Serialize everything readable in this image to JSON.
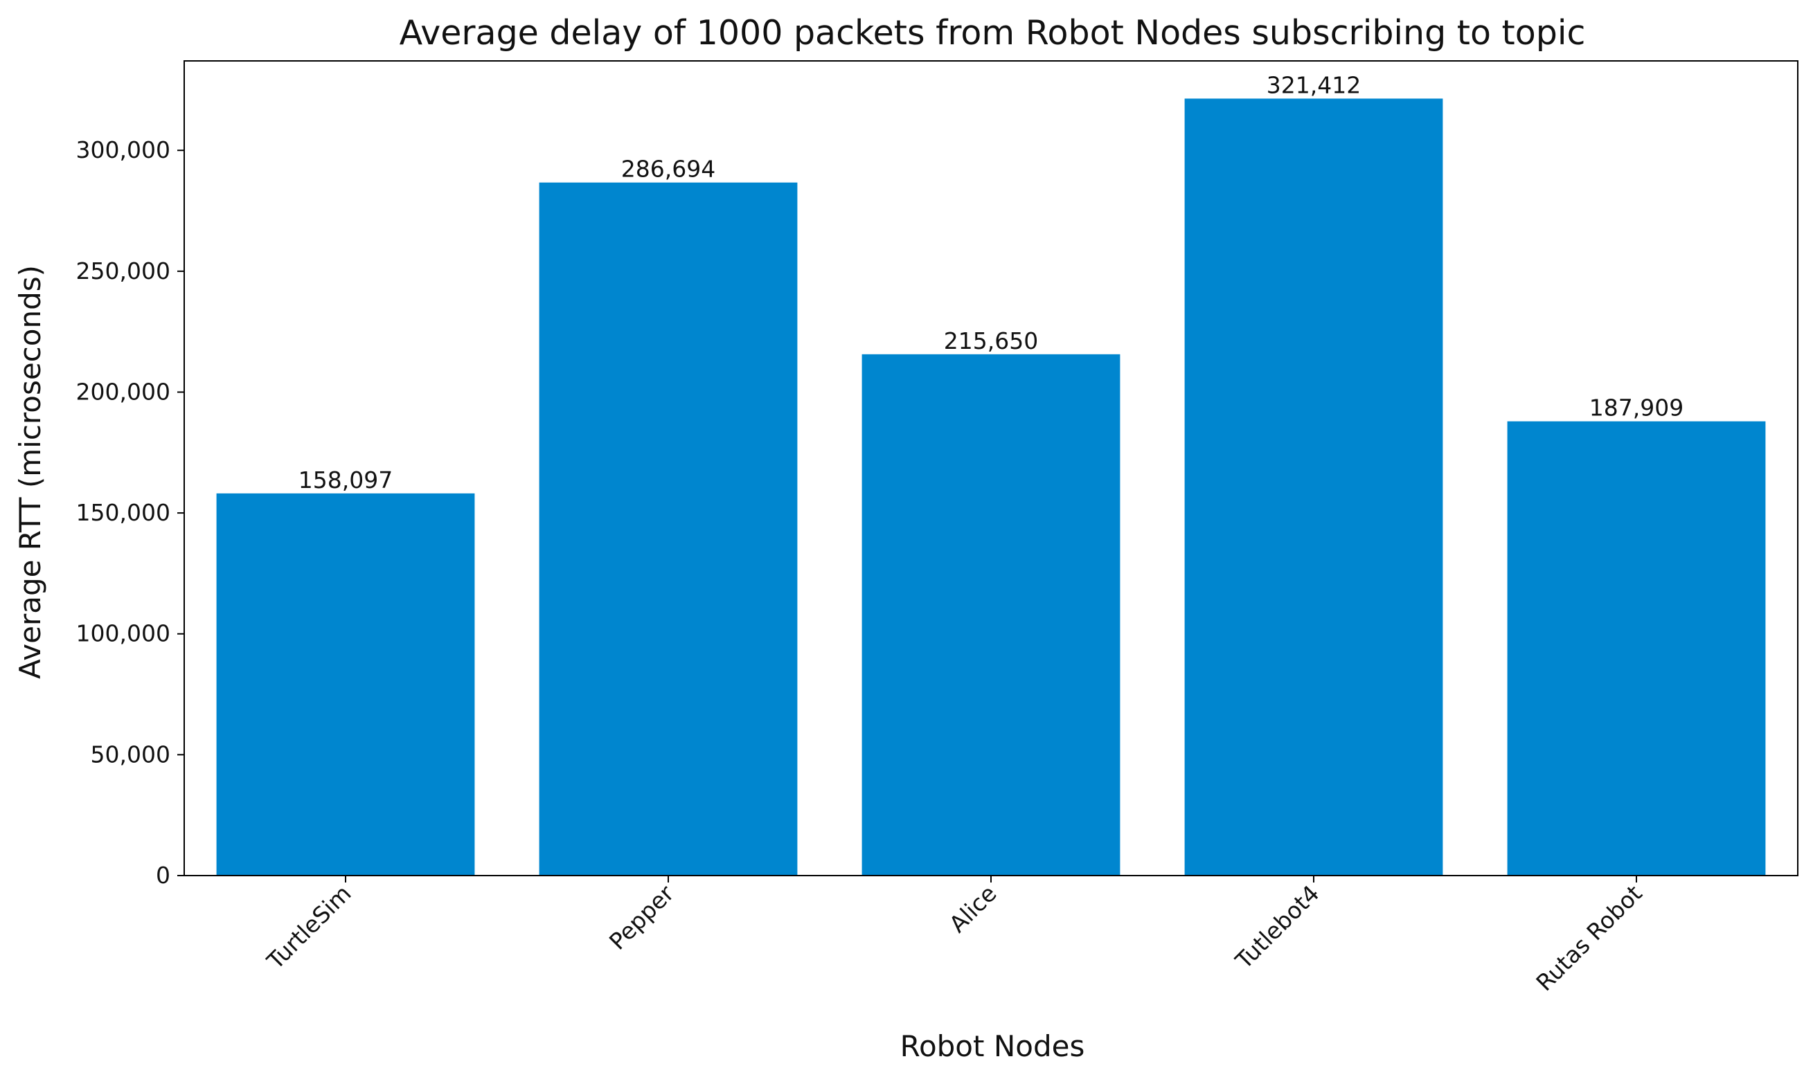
{
  "chart_data": {
    "type": "bar",
    "title": "Average delay of 1000 packets from Robot Nodes subscribing to topic",
    "xlabel": "Robot Nodes",
    "ylabel": "Average RTT (microseconds)",
    "categories": [
      "TurtleSim",
      "Pepper",
      "Alice",
      "Tutlebot4",
      "Rutas Robot"
    ],
    "values": [
      158097,
      286694,
      215650,
      321412,
      187909
    ],
    "data_labels": [
      "158,097",
      "286,694",
      "215,650",
      "321,412",
      "187,909"
    ],
    "ylim": [
      0,
      337000
    ],
    "yticks": [
      0,
      50000,
      100000,
      150000,
      200000,
      250000,
      300000
    ],
    "ytick_labels": [
      "0",
      "50,000",
      "100,000",
      "150,000",
      "200,000",
      "250,000",
      "300,000"
    ],
    "grid": false,
    "legend": "none",
    "bar_color": "#0086cf",
    "x_tick_rotation": "45 degrees"
  }
}
